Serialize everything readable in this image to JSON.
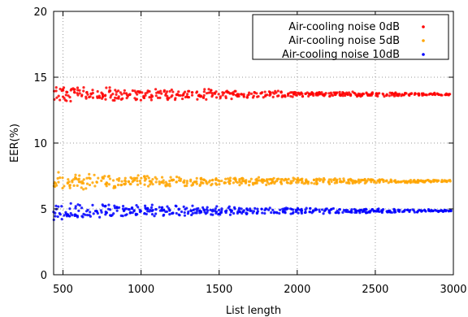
{
  "chart_data": {
    "type": "scatter",
    "xlabel": "List length",
    "ylabel": "EER(%)",
    "xlim": [
      440,
      3000
    ],
    "ylim": [
      0,
      20
    ],
    "xticks": [
      500,
      1000,
      1500,
      2000,
      2500,
      3000
    ],
    "yticks": [
      0,
      5,
      10,
      15,
      20
    ],
    "grid": true,
    "legend_position": "top-right",
    "x_range": [
      450,
      2975
    ],
    "x_step": 25,
    "series": [
      {
        "name": "Air-cooling noise 0dB",
        "color": "#ff0000",
        "center": 13.7,
        "spread_start": 0.8,
        "spread_end": 0.1
      },
      {
        "name": "Air-cooling noise 5dB",
        "color": "#ffa500",
        "center": 7.1,
        "spread_start": 0.8,
        "spread_end": 0.1
      },
      {
        "name": "Air-cooling noise 10dB",
        "color": "#0000ff",
        "center": 4.85,
        "spread_start": 0.8,
        "spread_end": 0.1
      }
    ]
  }
}
